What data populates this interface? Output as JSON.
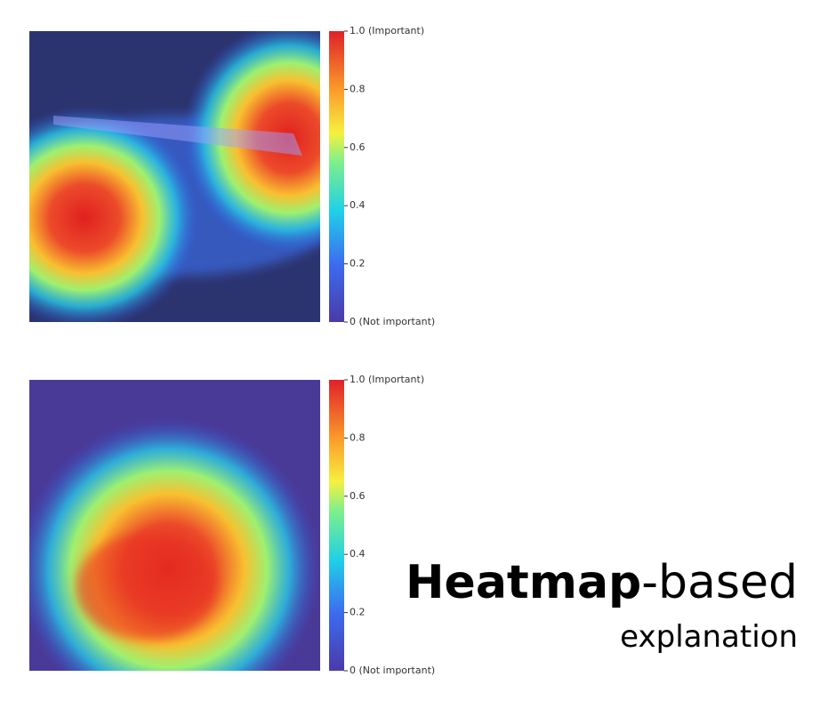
{
  "chart_data": [
    {
      "type": "heatmap-colorbar",
      "zlim": [
        0,
        1
      ],
      "zticks": [
        {
          "value": 1,
          "label": "1.0 (Important)"
        },
        0.8,
        0.6,
        0.4,
        0.2,
        {
          "value": 0,
          "label": "0 (Not important)"
        }
      ]
    },
    {
      "type": "heatmap-colorbar",
      "zlim": [
        0,
        1
      ],
      "zticks": [
        {
          "value": 1,
          "label": "1.0 (Important)"
        },
        0.8,
        0.6,
        0.4,
        0.2,
        {
          "value": 0,
          "label": "0 (Not important)"
        }
      ]
    }
  ],
  "caption": {
    "bold": "Heatmap",
    "rest": "-based",
    "line2": "explanation"
  }
}
